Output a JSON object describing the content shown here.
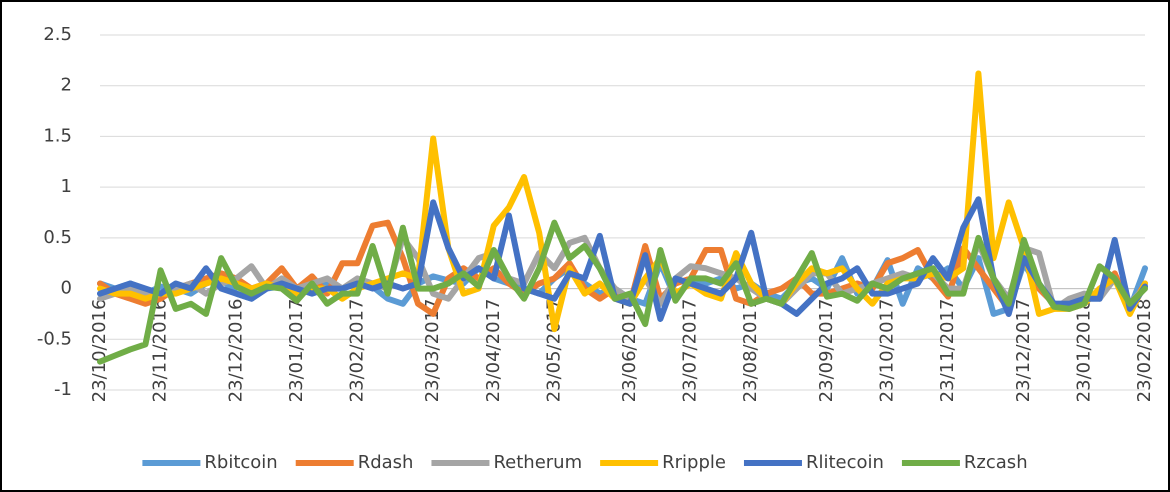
{
  "chart_data": {
    "type": "line",
    "categories": [
      "23/10/2016",
      null,
      null,
      null,
      "23/11/2016",
      null,
      null,
      null,
      null,
      "23/12/2016",
      null,
      null,
      null,
      "23/01/2017",
      null,
      null,
      null,
      "23/02/2017",
      null,
      null,
      null,
      null,
      "23/03/2017",
      null,
      null,
      null,
      "23/04/2017",
      null,
      null,
      null,
      "23/05/2017",
      null,
      null,
      null,
      null,
      "23/06/2017",
      null,
      null,
      null,
      "23/07/2017",
      null,
      null,
      null,
      "23/08/2017",
      null,
      null,
      null,
      null,
      "23/09/2017",
      null,
      null,
      null,
      "23/10/2017",
      null,
      null,
      null,
      "23/11/2017",
      null,
      null,
      null,
      null,
      "23/12/2017",
      null,
      null,
      null,
      "23/01/2018",
      null,
      null,
      null,
      "23/02/2018"
    ],
    "series": [
      {
        "name": "Rbitcoin",
        "color": "#5b9bd5",
        "values": [
          0.05,
          0,
          0.05,
          -0.05,
          0.02,
          0,
          -0.05,
          0.05,
          0.1,
          -0.05,
          -0.1,
          0,
          0.02,
          -0.05,
          0,
          0.05,
          0,
          0.05,
          0.02,
          -0.1,
          -0.15,
          0.05,
          0.12,
          0.08,
          0.05,
          0.2,
          0.1,
          0.05,
          0,
          -0.05,
          0.1,
          0.2,
          0.05,
          -0.05,
          0,
          -0.1,
          -0.15,
          0.25,
          -0.1,
          0.1,
          0.05,
          0.1,
          0,
          0.05,
          -0.05,
          -0.1,
          0.05,
          0.1,
          0,
          0.3,
          -0.05,
          0,
          0.28,
          -0.15,
          0.2,
          0.1,
          0.2,
          0,
          0.3,
          -0.25,
          -0.2,
          0.25,
          0,
          -0.15,
          -0.15,
          -0.1,
          -0.05,
          0.1,
          -0.2,
          0.2
        ]
      },
      {
        "name": "Rdash",
        "color": "#ed7d31",
        "values": [
          0.05,
          -0.05,
          -0.1,
          -0.15,
          -0.1,
          0,
          0.05,
          0.1,
          0.15,
          0.1,
          0,
          0.05,
          0.2,
          0,
          0.12,
          -0.05,
          0.25,
          0.25,
          0.62,
          0.65,
          0.3,
          -0.15,
          -0.25,
          0.1,
          0.2,
          0.1,
          0.2,
          0.05,
          -0.05,
          0.05,
          0.1,
          0.25,
          0,
          -0.1,
          0,
          -0.15,
          0.42,
          -0.1,
          0.05,
          0.1,
          0.38,
          0.38,
          -0.1,
          -0.15,
          -0.05,
          0,
          0.1,
          -0.05,
          -0.05,
          0,
          0.05,
          0,
          0.25,
          0.3,
          0.38,
          0.1,
          -0.08,
          0.4,
          0.2,
          0,
          -0.2,
          0.3,
          0,
          -0.15,
          -0.2,
          -0.1,
          -0.05,
          0.15,
          -0.2,
          0.05
        ]
      },
      {
        "name": "Retherum",
        "color": "#a5a5a5",
        "values": [
          -0.1,
          -0.05,
          0,
          -0.05,
          -0.05,
          0,
          0.05,
          -0.05,
          0.05,
          0.1,
          0.22,
          0,
          0.1,
          0,
          0.05,
          0.1,
          0,
          0.1,
          0.05,
          0,
          0.5,
          0.3,
          -0.05,
          -0.1,
          0.1,
          0.3,
          0.35,
          0.1,
          0.05,
          0.35,
          0.2,
          0.45,
          0.5,
          0.2,
          0,
          -0.1,
          0.1,
          -0.15,
          0.1,
          0.22,
          0.2,
          0.15,
          0.1,
          0,
          -0.1,
          -0.15,
          0,
          0.15,
          0.15,
          -0.05,
          0,
          0.05,
          0.1,
          0.15,
          0.1,
          0.15,
          0,
          0,
          0.45,
          0.1,
          -0.1,
          0.4,
          0.35,
          -0.2,
          -0.1,
          -0.05,
          -0.1,
          0.1,
          -0.15,
          0.02
        ]
      },
      {
        "name": "Rripple",
        "color": "#ffc000",
        "values": [
          0,
          -0.05,
          -0.05,
          -0.1,
          -0.05,
          -0.05,
          0,
          0.05,
          0.1,
          0.05,
          0,
          0.05,
          0,
          -0.05,
          0,
          0,
          -0.1,
          0,
          0.05,
          0.1,
          0.15,
          0.1,
          1.48,
          0.4,
          -0.05,
          0,
          0.62,
          0.8,
          1.1,
          0.55,
          -0.4,
          0.2,
          -0.05,
          0.05,
          -0.1,
          -0.15,
          0.1,
          0.3,
          -0.05,
          0.05,
          -0.05,
          -0.1,
          0.35,
          0.05,
          -0.1,
          -0.15,
          0.05,
          0.2,
          0.15,
          0.2,
          0,
          -0.15,
          0.05,
          0.1,
          0.1,
          0.15,
          0.1,
          0.2,
          2.12,
          0.3,
          0.85,
          0.4,
          -0.25,
          -0.2,
          -0.2,
          -0.15,
          0,
          0.1,
          -0.25,
          0.05
        ]
      },
      {
        "name": "Rlitecoin",
        "color": "#4472c4",
        "values": [
          -0.05,
          0,
          0.05,
          0,
          -0.05,
          0.05,
          0,
          0.2,
          0,
          -0.05,
          -0.1,
          0,
          0.05,
          0,
          -0.05,
          0,
          0,
          0.05,
          0,
          0.05,
          0,
          0.05,
          0.85,
          0.4,
          0.1,
          0.2,
          0.1,
          0.72,
          0,
          -0.05,
          -0.1,
          0.15,
          0.1,
          0.52,
          -0.1,
          -0.15,
          0.33,
          -0.3,
          0.1,
          0.05,
          0,
          -0.05,
          0.1,
          0.55,
          -0.1,
          -0.15,
          -0.25,
          -0.1,
          0.05,
          0.1,
          0.2,
          -0.05,
          -0.05,
          0,
          0.05,
          0.3,
          0.1,
          0.6,
          0.88,
          0.1,
          -0.25,
          0.3,
          0.05,
          -0.15,
          -0.15,
          -0.1,
          -0.1,
          0.48,
          -0.2,
          0.02
        ]
      },
      {
        "name": "Rzcash",
        "color": "#70ad47",
        "values": [
          -0.72,
          -0.66,
          -0.6,
          -0.55,
          0.18,
          -0.2,
          -0.15,
          -0.25,
          0.3,
          0.02,
          -0.05,
          0.02,
          0,
          -0.12,
          0.05,
          -0.15,
          -0.05,
          -0.05,
          0.42,
          -0.05,
          0.6,
          0,
          0,
          0.05,
          0.15,
          0.02,
          0.38,
          0.1,
          -0.1,
          0.2,
          0.65,
          0.3,
          0.42,
          0.2,
          -0.1,
          -0.05,
          -0.35,
          0.38,
          -0.12,
          0.1,
          0.1,
          0.05,
          0.25,
          -0.15,
          -0.1,
          -0.15,
          0.1,
          0.35,
          -0.08,
          -0.05,
          -0.12,
          0.05,
          0,
          0.1,
          0.15,
          0.2,
          -0.05,
          -0.05,
          0.5,
          0.1,
          -0.15,
          0.48,
          0.05,
          -0.18,
          -0.2,
          -0.15,
          0.22,
          0.1,
          -0.15,
          0
        ]
      }
    ],
    "ylim": [
      -1,
      2.5
    ],
    "yticks": [
      -1,
      -0.5,
      0,
      0.5,
      1,
      1.5,
      2,
      2.5
    ],
    "grid": true,
    "legend": "bottom"
  }
}
